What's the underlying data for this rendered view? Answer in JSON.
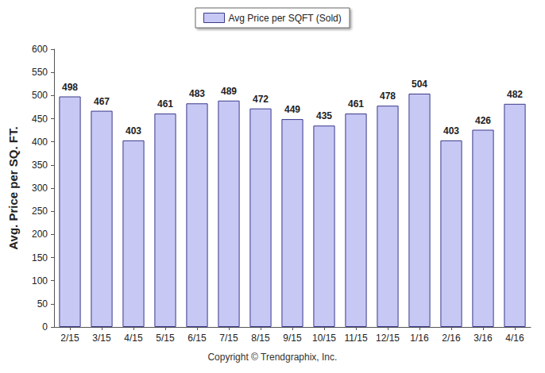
{
  "chart_data": {
    "type": "bar",
    "ylabel": "Avg. Price per SQ. FT.",
    "annotations": [
      "Copyright © Trendgraphix, Inc."
    ],
    "categories": [
      "2/15",
      "3/15",
      "4/15",
      "5/15",
      "6/15",
      "7/15",
      "8/15",
      "9/15",
      "10/15",
      "11/15",
      "12/15",
      "1/16",
      "2/16",
      "3/16",
      "4/16"
    ],
    "series": [
      {
        "name": "Avg Price per SQFT (Sold)",
        "color": "#c8c8f5",
        "values": [
          498,
          467,
          403,
          461,
          483,
          489,
          472,
          449,
          435,
          461,
          478,
          504,
          403,
          426,
          482
        ]
      }
    ],
    "ylim": [
      0,
      600
    ],
    "yticks": [
      0,
      50,
      100,
      150,
      200,
      250,
      300,
      350,
      400,
      450,
      500,
      550,
      600
    ],
    "grid": false,
    "legend": "top",
    "data_labels": true
  }
}
